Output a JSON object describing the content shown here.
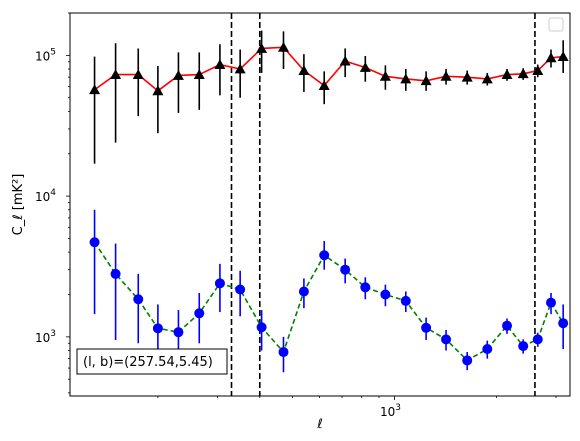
{
  "chart_data": {
    "type": "line",
    "title": "",
    "xlabel": "ℓ",
    "ylabel": "C_ℓ  [mK²]",
    "x_scale": "log",
    "y_scale": "log",
    "xlim": [
      110,
      3300
    ],
    "ylim": [
      380,
      200000
    ],
    "x_tick_labels": [
      {
        "value": 1000,
        "base": "10",
        "exp": "3"
      }
    ],
    "y_tick_labels": [
      {
        "value": 1000,
        "base": "10",
        "exp": "3"
      },
      {
        "value": 10000,
        "base": "10",
        "exp": "4"
      },
      {
        "value": 100000,
        "base": "10",
        "exp": "5"
      }
    ],
    "legend": {
      "placement": "upper right",
      "entries": []
    },
    "grid": false,
    "annotation": {
      "text": "(l, b)=(257.54,5.45)",
      "placement": "lower left"
    },
    "vlines": [
      {
        "x": 330,
        "style": "dashed"
      },
      {
        "x": 400,
        "style": "dashed"
      },
      {
        "x": 2600,
        "style": "dashed"
      }
    ],
    "series": [
      {
        "marker": "triangle",
        "marker_color": "#000000",
        "line_color": "#ff0000",
        "line_style": "solid",
        "points": [
          {
            "x": 130,
            "y": 57000,
            "err_lo": 17000,
            "err_hi": 98000
          },
          {
            "x": 150,
            "y": 73000,
            "err_lo": 24000,
            "err_hi": 122000
          },
          {
            "x": 175,
            "y": 73000,
            "err_lo": 37000,
            "err_hi": 112000
          },
          {
            "x": 200,
            "y": 56000,
            "err_lo": 28000,
            "err_hi": 84000
          },
          {
            "x": 230,
            "y": 72000,
            "err_lo": 39000,
            "err_hi": 105000
          },
          {
            "x": 265,
            "y": 73000,
            "err_lo": 41000,
            "err_hi": 105000
          },
          {
            "x": 305,
            "y": 86000,
            "err_lo": 52000,
            "err_hi": 120000
          },
          {
            "x": 350,
            "y": 80000,
            "err_lo": 50000,
            "err_hi": 110000
          },
          {
            "x": 405,
            "y": 112000,
            "err_lo": 75000,
            "err_hi": 150000
          },
          {
            "x": 470,
            "y": 114000,
            "err_lo": 80000,
            "err_hi": 148000
          },
          {
            "x": 540,
            "y": 78000,
            "err_lo": 55000,
            "err_hi": 102000
          },
          {
            "x": 620,
            "y": 61000,
            "err_lo": 45000,
            "err_hi": 77000
          },
          {
            "x": 715,
            "y": 91000,
            "err_lo": 70000,
            "err_hi": 112000
          },
          {
            "x": 820,
            "y": 82000,
            "err_lo": 65000,
            "err_hi": 99000
          },
          {
            "x": 940,
            "y": 71000,
            "err_lo": 57000,
            "err_hi": 85000
          },
          {
            "x": 1080,
            "y": 68000,
            "err_lo": 56000,
            "err_hi": 80000
          },
          {
            "x": 1240,
            "y": 66000,
            "err_lo": 56000,
            "err_hi": 77000
          },
          {
            "x": 1420,
            "y": 71000,
            "err_lo": 62000,
            "err_hi": 80000
          },
          {
            "x": 1640,
            "y": 70000,
            "err_lo": 62000,
            "err_hi": 78000
          },
          {
            "x": 1880,
            "y": 68000,
            "err_lo": 61000,
            "err_hi": 75000
          },
          {
            "x": 2150,
            "y": 73000,
            "err_lo": 66000,
            "err_hi": 80000
          },
          {
            "x": 2400,
            "y": 74000,
            "err_lo": 67000,
            "err_hi": 81000
          },
          {
            "x": 2650,
            "y": 78000,
            "err_lo": 70000,
            "err_hi": 86000
          },
          {
            "x": 2900,
            "y": 96000,
            "err_lo": 82000,
            "err_hi": 110000
          },
          {
            "x": 3150,
            "y": 98000,
            "err_lo": 75000,
            "err_hi": 128000
          }
        ]
      },
      {
        "marker": "circle",
        "marker_color": "#0000ff",
        "line_color": "#008000",
        "line_style": "dashed",
        "points": [
          {
            "x": 130,
            "y": 4700,
            "err_lo": 1450,
            "err_hi": 8000
          },
          {
            "x": 150,
            "y": 2800,
            "err_lo": 950,
            "err_hi": 4600
          },
          {
            "x": 175,
            "y": 1850,
            "err_lo": 900,
            "err_hi": 2800
          },
          {
            "x": 200,
            "y": 1150,
            "err_lo": 650,
            "err_hi": 1700
          },
          {
            "x": 230,
            "y": 1080,
            "err_lo": 620,
            "err_hi": 1550
          },
          {
            "x": 265,
            "y": 1470,
            "err_lo": 900,
            "err_hi": 2050
          },
          {
            "x": 305,
            "y": 2400,
            "err_lo": 1500,
            "err_hi": 3300
          },
          {
            "x": 350,
            "y": 2170,
            "err_lo": 1400,
            "err_hi": 2950
          },
          {
            "x": 405,
            "y": 1170,
            "err_lo": 800,
            "err_hi": 1550
          },
          {
            "x": 470,
            "y": 780,
            "err_lo": 560,
            "err_hi": 1000
          },
          {
            "x": 540,
            "y": 2100,
            "err_lo": 1600,
            "err_hi": 2600
          },
          {
            "x": 620,
            "y": 3800,
            "err_lo": 3000,
            "err_hi": 4800
          },
          {
            "x": 715,
            "y": 3000,
            "err_lo": 2400,
            "err_hi": 3600
          },
          {
            "x": 820,
            "y": 2250,
            "err_lo": 1850,
            "err_hi": 2650
          },
          {
            "x": 940,
            "y": 2000,
            "err_lo": 1650,
            "err_hi": 2350
          },
          {
            "x": 1080,
            "y": 1800,
            "err_lo": 1500,
            "err_hi": 2100
          },
          {
            "x": 1240,
            "y": 1160,
            "err_lo": 950,
            "err_hi": 1370
          },
          {
            "x": 1420,
            "y": 960,
            "err_lo": 800,
            "err_hi": 1120
          },
          {
            "x": 1640,
            "y": 680,
            "err_lo": 580,
            "err_hi": 780
          },
          {
            "x": 1880,
            "y": 820,
            "err_lo": 700,
            "err_hi": 940
          },
          {
            "x": 2150,
            "y": 1200,
            "err_lo": 1050,
            "err_hi": 1350
          },
          {
            "x": 2400,
            "y": 860,
            "err_lo": 760,
            "err_hi": 960
          },
          {
            "x": 2650,
            "y": 960,
            "err_lo": 850,
            "err_hi": 1070
          },
          {
            "x": 2900,
            "y": 1750,
            "err_lo": 1450,
            "err_hi": 2050
          },
          {
            "x": 3150,
            "y": 1250,
            "err_lo": 820,
            "err_hi": 1700
          }
        ]
      }
    ]
  }
}
